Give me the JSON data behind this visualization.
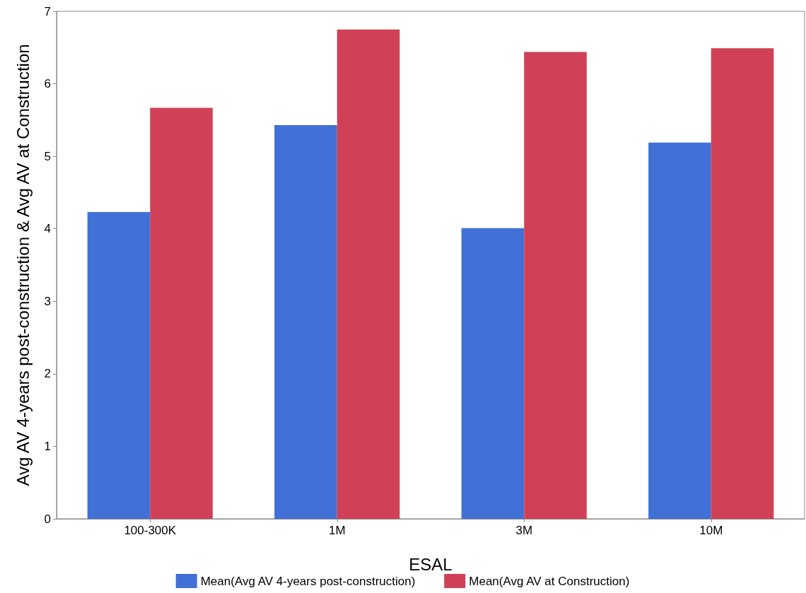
{
  "chart_data": {
    "type": "bar",
    "xlabel": "ESAL",
    "ylabel": "Avg AV 4-years post-construction & Avg AV at Construction",
    "categories": [
      "100-300K",
      "1M",
      "3M",
      "10M"
    ],
    "series": [
      {
        "name": "Mean(Avg AV 4-years post-construction)",
        "color": "#4170d6",
        "values": [
          4.23,
          5.43,
          4.01,
          5.19
        ]
      },
      {
        "name": "Mean(Avg AV at Construction)",
        "color": "#d04157",
        "values": [
          5.67,
          6.75,
          6.44,
          6.49
        ]
      }
    ],
    "ylim": [
      0,
      7
    ],
    "yticks": [
      0,
      1,
      2,
      3,
      4,
      5,
      6,
      7
    ],
    "grid": false,
    "legend": "bottom"
  }
}
